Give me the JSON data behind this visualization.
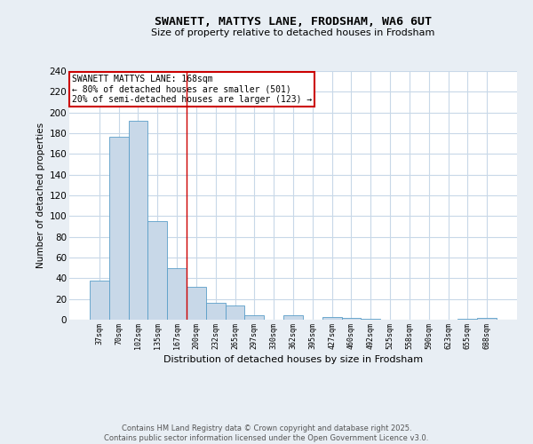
{
  "title_line1": "SWANETT, MATTYS LANE, FRODSHAM, WA6 6UT",
  "title_line2": "Size of property relative to detached houses in Frodsham",
  "xlabel": "Distribution of detached houses by size in Frodsham",
  "ylabel": "Number of detached properties",
  "categories": [
    "37sqm",
    "70sqm",
    "102sqm",
    "135sqm",
    "167sqm",
    "200sqm",
    "232sqm",
    "265sqm",
    "297sqm",
    "330sqm",
    "362sqm",
    "395sqm",
    "427sqm",
    "460sqm",
    "492sqm",
    "525sqm",
    "558sqm",
    "590sqm",
    "623sqm",
    "655sqm",
    "688sqm"
  ],
  "values": [
    38,
    177,
    192,
    95,
    50,
    32,
    16,
    14,
    4,
    0,
    4,
    0,
    3,
    2,
    1,
    0,
    0,
    0,
    0,
    1,
    2
  ],
  "bar_color": "#c8d8e8",
  "bar_edge_color": "#5a9ec8",
  "highlight_bar_index": 4,
  "highlight_line_color": "#cc0000",
  "annotation_title": "SWANETT MATTYS LANE: 168sqm",
  "annotation_line2": "← 80% of detached houses are smaller (501)",
  "annotation_line3": "20% of semi-detached houses are larger (123) →",
  "annotation_box_color": "#ffffff",
  "annotation_box_edge": "#cc0000",
  "ylim": [
    0,
    240
  ],
  "yticks": [
    0,
    20,
    40,
    60,
    80,
    100,
    120,
    140,
    160,
    180,
    200,
    220,
    240
  ],
  "footer_line1": "Contains HM Land Registry data © Crown copyright and database right 2025.",
  "footer_line2": "Contains public sector information licensed under the Open Government Licence v3.0.",
  "background_color": "#e8eef4",
  "plot_background_color": "#ffffff",
  "grid_color": "#c8d8e8"
}
